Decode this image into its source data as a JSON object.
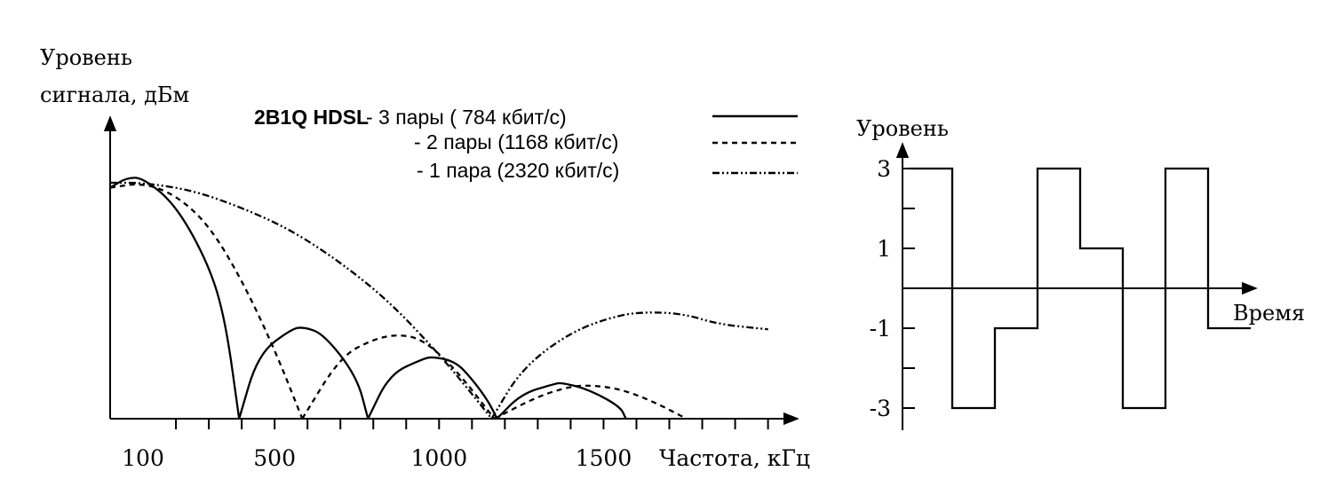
{
  "spectrum": {
    "ylabel_line1": "Уровень",
    "ylabel_line2": "сигнала, дБм",
    "xlabel": "Частота, кГц",
    "x_ticks": [
      {
        "value": 100,
        "label": "100"
      },
      {
        "value": 500,
        "label": "500"
      },
      {
        "value": 1000,
        "label": "1000"
      },
      {
        "value": 1500,
        "label": "1500"
      }
    ],
    "legend": {
      "header": "2B1Q HDSL",
      "items": [
        {
          "label": "- 3 пары (  784 кбит/с)",
          "style": "solid"
        },
        {
          "label": "- 2 пары (1168 кбит/с)",
          "style": "dashed"
        },
        {
          "label": "- 1 пара (2320 кбит/с)",
          "style": "dashdot"
        }
      ]
    }
  },
  "chart_data": [
    {
      "type": "line",
      "xlabel": "Частота, кГц",
      "ylabel": "Уровень сигнала, дБм",
      "xlim": [
        0,
        2100
      ],
      "ylim": [
        0,
        10
      ],
      "x_tick_values": [
        100,
        500,
        1000,
        1500
      ],
      "series": [
        {
          "name": "3 пары (  784 кбит/с)",
          "style": "solid",
          "x": [
            0,
            50,
            100,
            200,
            300,
            350,
            392,
            392,
            450,
            550,
            588,
            650,
            750,
            784,
            784,
            850,
            950,
            980,
            1050,
            1100,
            1150,
            1176,
            1176,
            1250,
            1350,
            1372,
            1450,
            1550,
            1568
          ],
          "y": [
            9.3,
            9.7,
            9.7,
            8.6,
            6.2,
            4.0,
            0.0,
            0.0,
            2.6,
            3.6,
            3.7,
            3.4,
            1.7,
            0.0,
            0.0,
            1.8,
            2.4,
            2.5,
            2.3,
            1.6,
            0.7,
            0.0,
            0.0,
            1.0,
            1.4,
            1.45,
            1.2,
            0.5,
            0.0
          ]
        },
        {
          "name": "2 пары (1168 кбит/с)",
          "style": "dashed",
          "x": [
            0,
            100,
            200,
            300,
            400,
            500,
            584,
            584,
            700,
            800,
            876,
            950,
            1050,
            1168,
            1168,
            1300,
            1400,
            1460,
            1550,
            1650,
            1752
          ],
          "y": [
            9.3,
            9.5,
            9.0,
            7.8,
            5.6,
            2.8,
            0.0,
            0.0,
            2.5,
            3.2,
            3.4,
            3.2,
            2.0,
            0.0,
            0.0,
            0.9,
            1.3,
            1.35,
            1.2,
            0.7,
            0.0
          ]
        },
        {
          "name": "1 пара (2320 кбит/с)",
          "style": "dashdot",
          "x": [
            0,
            100,
            250,
            400,
            550,
            700,
            850,
            1000,
            1100,
            1160,
            1160,
            1250,
            1400,
            1550,
            1650,
            1750,
            1850,
            2000
          ],
          "y": [
            9.5,
            9.5,
            9.2,
            8.5,
            7.6,
            6.3,
            4.7,
            2.6,
            1.0,
            0.0,
            0.0,
            2.0,
            3.5,
            4.2,
            4.3,
            4.2,
            3.8,
            3.6
          ]
        }
      ]
    },
    {
      "type": "line",
      "step": true,
      "ylabel": "Уровень",
      "xlabel": "Время",
      "y_ticks": [
        {
          "value": 3,
          "label": "3"
        },
        {
          "value": 1,
          "label": "1"
        },
        {
          "value": -1,
          "label": "-1"
        },
        {
          "value": -3,
          "label": "-3"
        }
      ],
      "ylim": [
        -3,
        3
      ],
      "series": [
        {
          "levels": [
            3,
            -3,
            -1,
            3,
            1,
            -3,
            3,
            -1
          ]
        }
      ]
    }
  ]
}
